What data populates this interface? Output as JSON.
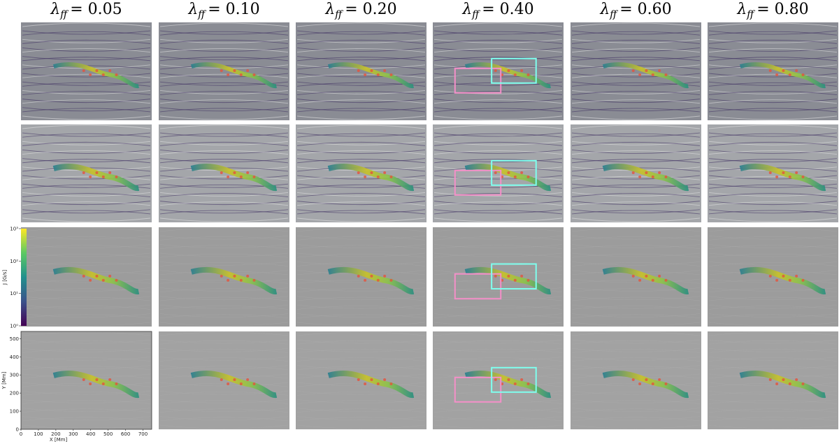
{
  "figure": {
    "column_titles": [
      {
        "symbol": "λ",
        "subscript": "ff",
        "text": "= 0.05"
      },
      {
        "symbol": "λ",
        "subscript": "ff",
        "text": "= 0.10"
      },
      {
        "symbol": "λ",
        "subscript": "ff",
        "text": "= 0.20"
      },
      {
        "symbol": "λ",
        "subscript": "ff",
        "text": "= 0.40"
      },
      {
        "symbol": "λ",
        "subscript": "ff",
        "text": "= 0.60"
      },
      {
        "symbol": "λ",
        "subscript": "ff",
        "text": "= 0.80"
      }
    ],
    "colorbar": {
      "label": "J [G/s]",
      "log_scale": true,
      "lim": [
        1,
        1000
      ],
      "ticks": [
        {
          "value": 1,
          "label": "10⁰"
        },
        {
          "value": 10,
          "label": "10¹"
        },
        {
          "value": 100,
          "label": "10²"
        },
        {
          "value": 1000,
          "label": "10³"
        }
      ]
    },
    "axes": {
      "xlabel": "X [Mm]",
      "ylabel": "Y [Mm]",
      "xlim": [
        0,
        750
      ],
      "ylim": [
        0,
        540
      ],
      "xticks": [
        0,
        100,
        200,
        300,
        400,
        500,
        600,
        700
      ],
      "yticks": [
        0,
        100,
        200,
        300,
        400,
        500
      ]
    }
  }
}
